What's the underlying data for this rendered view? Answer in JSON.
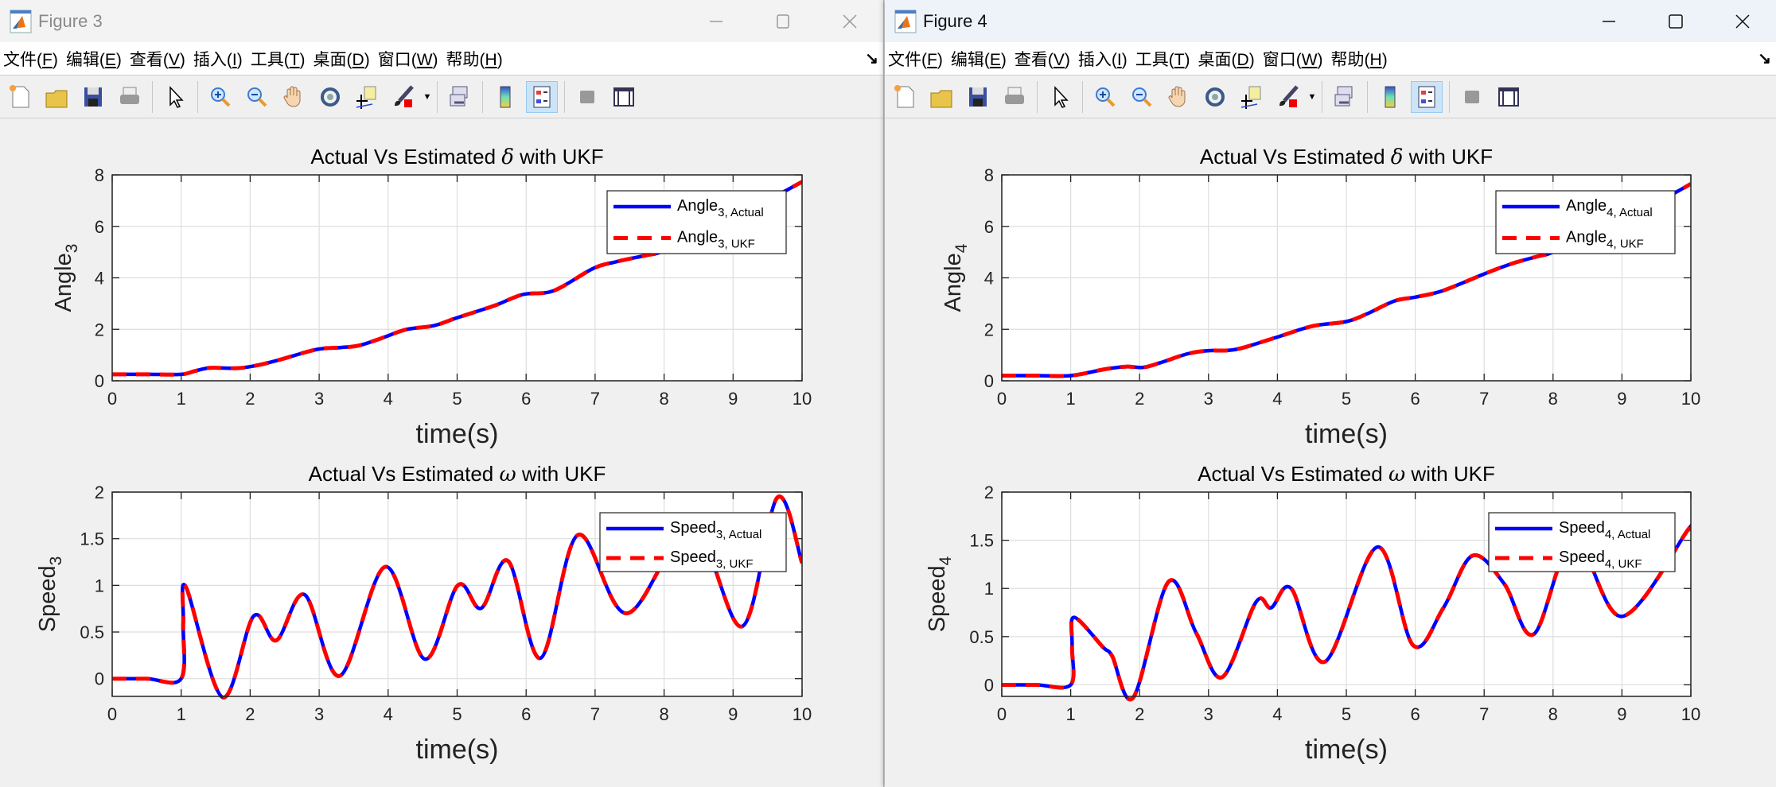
{
  "colors": {
    "actual": "#0000ff",
    "ukf": "#ff0000",
    "grid": "#dedede",
    "axes_bg": "#ffffff",
    "page_bg": "#f0f0f0"
  },
  "menu": [
    {
      "label": "文件",
      "key": "F"
    },
    {
      "label": "编辑",
      "key": "E"
    },
    {
      "label": "查看",
      "key": "V"
    },
    {
      "label": "插入",
      "key": "I"
    },
    {
      "label": "工具",
      "key": "T"
    },
    {
      "label": "桌面",
      "key": "D"
    },
    {
      "label": "窗口",
      "key": "W"
    },
    {
      "label": "帮助",
      "key": "H"
    }
  ],
  "dock_arrow": "↘",
  "toolbar_icons": [
    "new-figure-icon",
    "open-file-icon",
    "save-icon",
    "print-icon",
    "|",
    "pointer-icon",
    "|",
    "zoom-in-icon",
    "zoom-out-icon",
    "pan-hand-icon",
    "rotate-3d-icon",
    "data-cursor-icon",
    "brush-icon",
    "brush-dropdown",
    "|",
    "link-plot-icon",
    "|",
    "colorbar-icon",
    "legend-icon",
    "|",
    "hide-plot-tools-icon",
    "show-plot-tools-icon"
  ],
  "active_toolbar_icon": "legend-icon",
  "windows": [
    {
      "title": "Figure 3",
      "active": false
    },
    {
      "title": "Figure 4",
      "active": true
    }
  ],
  "chart_data": [
    {
      "figure": "Figure 3",
      "type": "line",
      "title": "Actual Vs Estimated δ with UKF",
      "xlabel": "time(s)",
      "ylabel": "Angle",
      "ylabel_sub": "3",
      "xlim": [
        0,
        10
      ],
      "ylim": [
        0,
        8
      ],
      "xticks": [
        0,
        1,
        2,
        3,
        4,
        5,
        6,
        7,
        8,
        9,
        10
      ],
      "yticks": [
        0,
        2,
        4,
        6,
        8
      ],
      "grid": true,
      "legend_position": "top-right",
      "series": [
        {
          "name": "Angle",
          "name_sub": "3, Actual",
          "style": "solid",
          "color": "#0000ff"
        },
        {
          "name": "Angle",
          "name_sub": "3, UKF",
          "style": "dashed",
          "color": "#ff0000"
        }
      ],
      "x": [
        0,
        0.5,
        1,
        1.2,
        1.42,
        1.82,
        2.1,
        2.43,
        2.97,
        3.31,
        3.58,
        3.9,
        4.26,
        4.66,
        5.0,
        5.54,
        5.95,
        6.4,
        6.97,
        7.3,
        7.75,
        7.98,
        8.5,
        9.0,
        9.4,
        9.74,
        10
      ],
      "y": [
        0.25,
        0.25,
        0.25,
        0.38,
        0.5,
        0.49,
        0.6,
        0.82,
        1.22,
        1.29,
        1.37,
        1.65,
        1.99,
        2.14,
        2.45,
        2.92,
        3.35,
        3.5,
        4.36,
        4.62,
        4.88,
        5.03,
        5.75,
        6.35,
        6.85,
        7.35,
        7.73
      ]
    },
    {
      "figure": "Figure 3",
      "type": "line",
      "title": "Actual Vs Estimated ω with UKF",
      "xlabel": "time(s)",
      "ylabel": "Speed",
      "ylabel_sub": "3",
      "xlim": [
        0,
        10
      ],
      "ylim": [
        -0.19,
        2
      ],
      "xticks": [
        0,
        1,
        2,
        3,
        4,
        5,
        6,
        7,
        8,
        9,
        10
      ],
      "yticks": [
        0,
        0.5,
        1,
        1.5,
        2
      ],
      "grid": true,
      "legend_position": "top-right",
      "series": [
        {
          "name": "Speed",
          "name_sub": "3, Actual",
          "style": "solid",
          "color": "#0000ff"
        },
        {
          "name": "Speed",
          "name_sub": "3, UKF",
          "style": "dashed",
          "color": "#ff0000"
        }
      ],
      "x": [
        0,
        0.5,
        1.0,
        1.03,
        1.07,
        1.6,
        2.05,
        2.38,
        2.79,
        3.3,
        3.96,
        4.53,
        5.01,
        5.35,
        5.74,
        6.21,
        6.75,
        7.46,
        8.4,
        9.13,
        9.64,
        10
      ],
      "y": [
        0,
        0,
        0,
        0.6,
        0.98,
        -0.2,
        0.67,
        0.41,
        0.9,
        0.03,
        1.2,
        0.21,
        1.0,
        0.755,
        1.26,
        0.22,
        1.54,
        0.7,
        1.62,
        0.56,
        1.94,
        1.24
      ]
    },
    {
      "figure": "Figure 4",
      "type": "line",
      "title": "Actual Vs Estimated δ with UKF",
      "xlabel": "time(s)",
      "ylabel": "Angle",
      "ylabel_sub": "4",
      "xlim": [
        0,
        10
      ],
      "ylim": [
        0,
        8
      ],
      "xticks": [
        0,
        1,
        2,
        3,
        4,
        5,
        6,
        7,
        8,
        9,
        10
      ],
      "yticks": [
        0,
        2,
        4,
        6,
        8
      ],
      "grid": true,
      "legend_position": "top-right",
      "series": [
        {
          "name": "Angle",
          "name_sub": "4, Actual",
          "style": "solid",
          "color": "#0000ff"
        },
        {
          "name": "Angle",
          "name_sub": "4, UKF",
          "style": "dashed",
          "color": "#ff0000"
        }
      ],
      "x": [
        0,
        0.5,
        1,
        1.5,
        1.8,
        2.05,
        2.3,
        2.7,
        3.0,
        3.4,
        4.0,
        4.5,
        5.0,
        5.3,
        5.7,
        6.0,
        6.4,
        7.0,
        7.4,
        7.8,
        8.0,
        8.5,
        9.0,
        9.5,
        9.7,
        10
      ],
      "y": [
        0.2,
        0.2,
        0.2,
        0.45,
        0.55,
        0.52,
        0.7,
        1.05,
        1.17,
        1.22,
        1.7,
        2.12,
        2.3,
        2.6,
        3.1,
        3.25,
        3.5,
        4.15,
        4.55,
        4.85,
        5.0,
        5.7,
        6.3,
        6.9,
        7.2,
        7.65
      ]
    },
    {
      "figure": "Figure 4",
      "type": "line",
      "title": "Actual Vs Estimated ω with UKF",
      "xlabel": "time(s)",
      "ylabel": "Speed",
      "ylabel_sub": "4",
      "xlim": [
        0,
        10
      ],
      "ylim": [
        -0.12,
        2
      ],
      "xticks": [
        0,
        1,
        2,
        3,
        4,
        5,
        6,
        7,
        8,
        9,
        10
      ],
      "yticks": [
        0,
        0.5,
        1,
        1.5,
        2
      ],
      "grid": true,
      "legend_position": "top-right",
      "series": [
        {
          "name": "Speed",
          "name_sub": "4, Actual",
          "style": "solid",
          "color": "#0000ff"
        },
        {
          "name": "Speed",
          "name_sub": "4, UKF",
          "style": "dashed",
          "color": "#ff0000"
        }
      ],
      "x": [
        0,
        0.5,
        1.0,
        1.02,
        1.05,
        1.47,
        1.6,
        1.91,
        2.42,
        2.82,
        3.2,
        3.69,
        3.91,
        4.2,
        4.69,
        5.45,
        5.97,
        6.41,
        6.83,
        7.29,
        7.72,
        8.3,
        9.0,
        9.97,
        10
      ],
      "y": [
        0,
        0,
        0,
        0.4,
        0.7,
        0.39,
        0.3,
        -0.13,
        1.07,
        0.54,
        0.08,
        0.86,
        0.8,
        1.0,
        0.24,
        1.43,
        0.41,
        0.8,
        1.34,
        1.05,
        0.525,
        1.5,
        0.71,
        1.62,
        1.61
      ]
    }
  ]
}
